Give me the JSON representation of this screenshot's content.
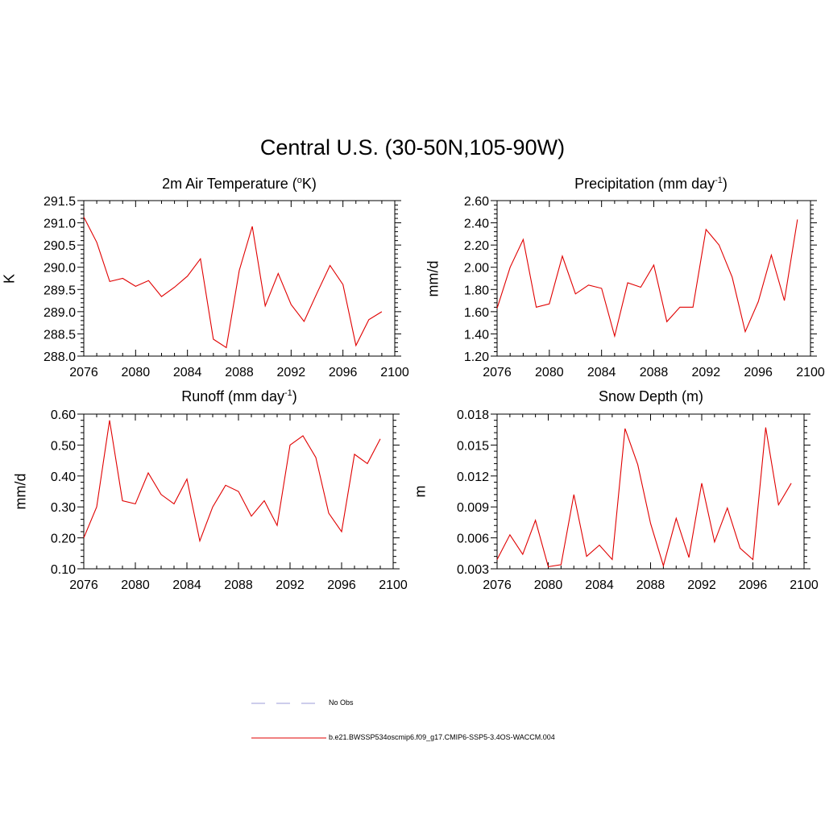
{
  "title": "Central U.S. (30-50N,105-90W)",
  "panels": [
    {
      "title_main": "2m Air Temperature (",
      "title_sup": "o",
      "title_end": "K)",
      "ylabel": "K"
    },
    {
      "title_main": "Precipitation (mm day",
      "title_sup": "-1",
      "title_end": ")",
      "ylabel": "mm/d"
    },
    {
      "title_main": "Runoff (mm day",
      "title_sup": "-1",
      "title_end": ")",
      "ylabel": "mm/d"
    },
    {
      "title_main": "Snow Depth (m)",
      "title_sup": "",
      "title_end": "",
      "ylabel": "m"
    }
  ],
  "legend": {
    "obs_label": "No Obs",
    "obs_color": "#9b9bd9",
    "model_label": "b.e21.BWSSP534oscmip6.f09_g17.CMIP6-SSP5-3.4OS-WACCM.004",
    "model_color": "#e00000"
  },
  "chart_data": [
    {
      "type": "line",
      "title": "2m Air Temperature (oK)",
      "xlabel": "",
      "ylabel": "K",
      "xlim": [
        2076,
        2100
      ],
      "ylim": [
        288.0,
        291.5
      ],
      "xticks": [
        2076,
        2080,
        2084,
        2088,
        2092,
        2096,
        2100
      ],
      "yticks": [
        288.0,
        288.5,
        289.0,
        289.5,
        290.0,
        290.5,
        291.0,
        291.5
      ],
      "ytick_labels": [
        "288.0",
        "288.5",
        "289.0",
        "289.5",
        "290.0",
        "290.5",
        "291.0",
        "291.5"
      ],
      "series": [
        {
          "name": "b.e21.BWSSP534oscmip6.f09_g17.CMIP6-SSP5-3.4OS-WACCM.004",
          "x": [
            2076,
            2077,
            2078,
            2079,
            2080,
            2081,
            2082,
            2083,
            2084,
            2085,
            2086,
            2087,
            2088,
            2089,
            2090,
            2091,
            2092,
            2093,
            2094,
            2095,
            2096,
            2097,
            2098,
            2099
          ],
          "values": [
            291.13,
            290.56,
            289.68,
            289.75,
            289.57,
            289.7,
            289.34,
            289.55,
            289.8,
            290.19,
            288.38,
            288.19,
            289.93,
            290.92,
            289.13,
            289.86,
            289.16,
            288.78,
            289.42,
            290.04,
            289.61,
            288.24,
            288.82,
            289.0
          ]
        }
      ]
    },
    {
      "type": "line",
      "title": "Precipitation (mm day-1)",
      "xlabel": "",
      "ylabel": "mm/d",
      "xlim": [
        2076,
        2100
      ],
      "ylim": [
        1.2,
        2.6
      ],
      "xticks": [
        2076,
        2080,
        2084,
        2088,
        2092,
        2096,
        2100
      ],
      "yticks": [
        1.2,
        1.4,
        1.6,
        1.8,
        2.0,
        2.2,
        2.4,
        2.6
      ],
      "ytick_labels": [
        "1.20",
        "1.40",
        "1.60",
        "1.80",
        "2.00",
        "2.20",
        "2.40",
        "2.60"
      ],
      "series": [
        {
          "name": "b.e21.BWSSP534oscmip6.f09_g17.CMIP6-SSP5-3.4OS-WACCM.004",
          "x": [
            2076,
            2077,
            2078,
            2079,
            2080,
            2081,
            2082,
            2083,
            2084,
            2085,
            2086,
            2087,
            2088,
            2089,
            2090,
            2091,
            2092,
            2093,
            2094,
            2095,
            2096,
            2097,
            2098,
            2099
          ],
          "values": [
            1.63,
            2.0,
            2.25,
            1.64,
            1.67,
            2.1,
            1.76,
            1.84,
            1.81,
            1.38,
            1.86,
            1.82,
            2.02,
            1.51,
            1.64,
            1.64,
            2.34,
            2.2,
            1.91,
            1.42,
            1.69,
            2.11,
            1.7,
            2.43
          ]
        }
      ]
    },
    {
      "type": "line",
      "title": "Runoff (mm day-1)",
      "xlabel": "",
      "ylabel": "mm/d",
      "xlim": [
        2076,
        2100
      ],
      "ylim": [
        0.1,
        0.6
      ],
      "xticks": [
        2076,
        2080,
        2084,
        2088,
        2092,
        2096,
        2100
      ],
      "yticks": [
        0.1,
        0.2,
        0.3,
        0.4,
        0.5,
        0.6
      ],
      "ytick_labels": [
        "0.10",
        "0.20",
        "0.30",
        "0.40",
        "0.50",
        "0.60"
      ],
      "series": [
        {
          "name": "b.e21.BWSSP534oscmip6.f09_g17.CMIP6-SSP5-3.4OS-WACCM.004",
          "x": [
            2076,
            2077,
            2078,
            2079,
            2080,
            2081,
            2082,
            2083,
            2084,
            2085,
            2086,
            2087,
            2088,
            2089,
            2090,
            2091,
            2092,
            2093,
            2094,
            2095,
            2096,
            2097,
            2098,
            2099
          ],
          "values": [
            0.2,
            0.3,
            0.58,
            0.32,
            0.31,
            0.41,
            0.34,
            0.31,
            0.39,
            0.19,
            0.3,
            0.37,
            0.35,
            0.27,
            0.32,
            0.24,
            0.5,
            0.53,
            0.46,
            0.28,
            0.22,
            0.47,
            0.44,
            0.52
          ]
        }
      ]
    },
    {
      "type": "line",
      "title": "Snow Depth (m)",
      "xlabel": "",
      "ylabel": "m",
      "xlim": [
        2076,
        2100
      ],
      "ylim": [
        0.003,
        0.018
      ],
      "xticks": [
        2076,
        2080,
        2084,
        2088,
        2092,
        2096,
        2100
      ],
      "yticks": [
        0.003,
        0.006,
        0.009,
        0.012,
        0.015,
        0.018
      ],
      "ytick_labels": [
        "0.003",
        "0.006",
        "0.009",
        "0.012",
        "0.015",
        "0.018"
      ],
      "series": [
        {
          "name": "b.e21.BWSSP534oscmip6.f09_g17.CMIP6-SSP5-3.4OS-WACCM.004",
          "x": [
            2076,
            2077,
            2078,
            2079,
            2080,
            2081,
            2082,
            2083,
            2084,
            2085,
            2086,
            2087,
            2088,
            2089,
            2090,
            2091,
            2092,
            2093,
            2094,
            2095,
            2096,
            2097,
            2098,
            2099
          ],
          "values": [
            0.0039,
            0.0063,
            0.0044,
            0.0077,
            0.0032,
            0.0034,
            0.0102,
            0.0042,
            0.0053,
            0.0039,
            0.0166,
            0.0131,
            0.0074,
            0.0033,
            0.0079,
            0.0041,
            0.0113,
            0.0056,
            0.0089,
            0.005,
            0.0039,
            0.0167,
            0.0092,
            0.0113
          ]
        }
      ]
    }
  ]
}
